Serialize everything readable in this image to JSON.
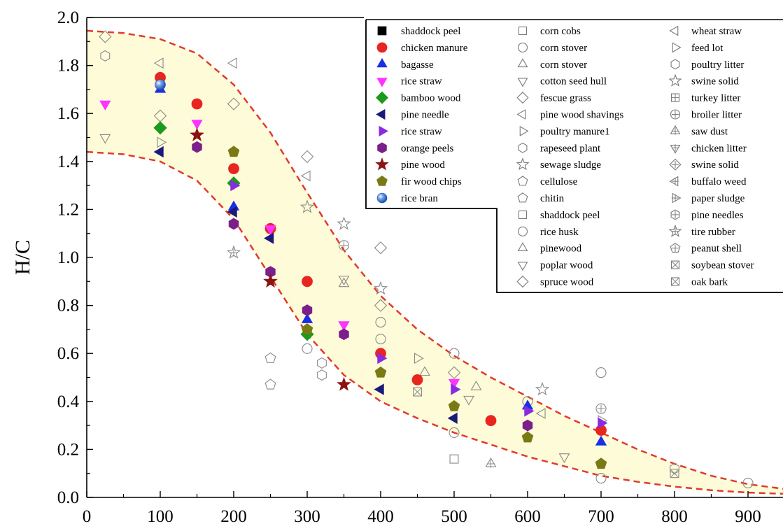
{
  "chart_data": {
    "type": "scatter",
    "xlim": [
      0,
      950
    ],
    "ylim": [
      0.0,
      2.0
    ],
    "ylabel": "H/C",
    "xlabel": "",
    "x_ticks": [
      "0",
      "100",
      "200",
      "300",
      "400",
      "500",
      "600",
      "700",
      "800",
      "900"
    ],
    "y_ticks": [
      "0.0",
      "0.2",
      "0.4",
      "0.6",
      "0.8",
      "1.0",
      "1.2",
      "1.4",
      "1.6",
      "1.8",
      "2.0"
    ],
    "grid": false,
    "legend_position": "top-right",
    "band": {
      "fill": "#fdfbd8",
      "line_color": "#e23a2a",
      "upper": [
        [
          0,
          1.945
        ],
        [
          50,
          1.935
        ],
        [
          100,
          1.91
        ],
        [
          150,
          1.85
        ],
        [
          200,
          1.72
        ],
        [
          250,
          1.52
        ],
        [
          300,
          1.27
        ],
        [
          350,
          1.03
        ],
        [
          400,
          0.84
        ],
        [
          450,
          0.7
        ],
        [
          500,
          0.59
        ],
        [
          550,
          0.5
        ],
        [
          600,
          0.42
        ],
        [
          650,
          0.34
        ],
        [
          700,
          0.27
        ],
        [
          750,
          0.2
        ],
        [
          800,
          0.14
        ],
        [
          850,
          0.09
        ],
        [
          900,
          0.055
        ],
        [
          950,
          0.035
        ]
      ],
      "lower": [
        [
          0,
          1.44
        ],
        [
          50,
          1.43
        ],
        [
          100,
          1.4
        ],
        [
          150,
          1.32
        ],
        [
          200,
          1.16
        ],
        [
          250,
          0.92
        ],
        [
          300,
          0.68
        ],
        [
          350,
          0.51
        ],
        [
          400,
          0.4
        ],
        [
          450,
          0.33
        ],
        [
          500,
          0.27
        ],
        [
          550,
          0.22
        ],
        [
          600,
          0.17
        ],
        [
          650,
          0.13
        ],
        [
          700,
          0.09
        ],
        [
          750,
          0.065
        ],
        [
          800,
          0.045
        ],
        [
          850,
          0.03
        ],
        [
          900,
          0.02
        ],
        [
          950,
          0.015
        ]
      ]
    },
    "legend_filled": [
      {
        "name": "shaddock peel",
        "marker": "square",
        "color": "#000000"
      },
      {
        "name": "chicken manure",
        "marker": "circle",
        "color": "#e8251f"
      },
      {
        "name": "bagasse",
        "marker": "triangle-up",
        "color": "#1a2ee6"
      },
      {
        "name": "rice straw",
        "marker": "triangle-down",
        "color": "#ff33ff"
      },
      {
        "name": "bamboo wood",
        "marker": "diamond",
        "color": "#1b9a1b"
      },
      {
        "name": "pine needle",
        "marker": "triangle-left",
        "color": "#1a1a7a"
      },
      {
        "name": "rice straw",
        "marker": "triangle-right",
        "color": "#8a2be2"
      },
      {
        "name": "orange peels",
        "marker": "hexagon",
        "color": "#7b1f8a"
      },
      {
        "name": "pine wood",
        "marker": "star",
        "color": "#8a1414"
      },
      {
        "name": "fir wood chips",
        "marker": "pentagon",
        "color": "#7a7a14"
      },
      {
        "name": "rice bran",
        "marker": "ball",
        "color": "#3b6fd1"
      }
    ],
    "legend_open": [
      {
        "name": "corn cobs",
        "marker": "square"
      },
      {
        "name": "corn stover",
        "marker": "circle"
      },
      {
        "name": "corn stover",
        "marker": "triangle-up"
      },
      {
        "name": "cotton seed hull",
        "marker": "triangle-down"
      },
      {
        "name": "fescue grass",
        "marker": "diamond"
      },
      {
        "name": "pine wood shavings",
        "marker": "triangle-left"
      },
      {
        "name": "poultry manure1",
        "marker": "triangle-right"
      },
      {
        "name": "rapeseed plant",
        "marker": "hexagon"
      },
      {
        "name": "sewage sludge",
        "marker": "star"
      },
      {
        "name": "cellulose",
        "marker": "pentagon"
      },
      {
        "name": "chitin",
        "marker": "pentagon"
      },
      {
        "name": "shaddock peel",
        "marker": "square"
      },
      {
        "name": "rice husk",
        "marker": "circle"
      },
      {
        "name": "pinewood",
        "marker": "triangle-up"
      },
      {
        "name": "poplar wood",
        "marker": "triangle-down"
      },
      {
        "name": "spruce wood",
        "marker": "diamond"
      },
      {
        "name": "wheat straw",
        "marker": "triangle-left"
      },
      {
        "name": "feed lot",
        "marker": "triangle-right"
      },
      {
        "name": "poultry litter",
        "marker": "hexagon"
      },
      {
        "name": "swine solid",
        "marker": "star"
      },
      {
        "name": "turkey litter",
        "marker": "square-plus"
      },
      {
        "name": "broiler litter",
        "marker": "circle-plus"
      },
      {
        "name": "saw dust",
        "marker": "triangle-up-plus"
      },
      {
        "name": "chicken litter",
        "marker": "triangle-down-plus"
      },
      {
        "name": "swine solid",
        "marker": "diamond-plus"
      },
      {
        "name": "buffalo weed",
        "marker": "triangle-left-plus"
      },
      {
        "name": "paper sludge",
        "marker": "triangle-right-plus"
      },
      {
        "name": "pine needles",
        "marker": "hexagon-plus"
      },
      {
        "name": "tire rubber",
        "marker": "star-plus"
      },
      {
        "name": "peanut shell",
        "marker": "pentagon-plus"
      },
      {
        "name": "soybean stover",
        "marker": "square-x"
      },
      {
        "name": "oak bark",
        "marker": "square-x"
      }
    ],
    "points_filled": [
      {
        "series": "chicken manure",
        "x": 100,
        "y": 1.75
      },
      {
        "series": "chicken manure",
        "x": 150,
        "y": 1.64
      },
      {
        "series": "chicken manure",
        "x": 200,
        "y": 1.37
      },
      {
        "series": "chicken manure",
        "x": 250,
        "y": 1.12
      },
      {
        "series": "chicken manure",
        "x": 300,
        "y": 0.9
      },
      {
        "series": "chicken manure",
        "x": 400,
        "y": 0.6
      },
      {
        "series": "chicken manure",
        "x": 450,
        "y": 0.49
      },
      {
        "series": "chicken manure",
        "x": 550,
        "y": 0.32
      },
      {
        "series": "chicken manure",
        "x": 700,
        "y": 0.28
      },
      {
        "series": "bagasse",
        "x": 100,
        "y": 1.7
      },
      {
        "series": "bagasse",
        "x": 200,
        "y": 1.21
      },
      {
        "series": "bagasse",
        "x": 300,
        "y": 0.74
      },
      {
        "series": "bagasse",
        "x": 600,
        "y": 0.38
      },
      {
        "series": "bagasse",
        "x": 700,
        "y": 0.23
      },
      {
        "series": "rice straw",
        "x": 25,
        "y": 1.64
      },
      {
        "series": "rice straw",
        "x": 150,
        "y": 1.56
      },
      {
        "series": "rice straw",
        "x": 250,
        "y": 1.12
      },
      {
        "series": "rice straw",
        "x": 350,
        "y": 0.72
      },
      {
        "series": "rice straw",
        "x": 500,
        "y": 0.48
      },
      {
        "series": "bamboo wood",
        "x": 100,
        "y": 1.54
      },
      {
        "series": "bamboo wood",
        "x": 200,
        "y": 1.31
      },
      {
        "series": "bamboo wood",
        "x": 300,
        "y": 0.68
      },
      {
        "series": "pine needle",
        "x": 100,
        "y": 1.44
      },
      {
        "series": "pine needle",
        "x": 200,
        "y": 1.19
      },
      {
        "series": "pine needle",
        "x": 250,
        "y": 1.08
      },
      {
        "series": "pine needle",
        "x": 400,
        "y": 0.45
      },
      {
        "series": "pine needle",
        "x": 500,
        "y": 0.33
      },
      {
        "series": "rice straw",
        "x": 200,
        "y": 1.3
      },
      {
        "series": "rice straw",
        "x": 400,
        "y": 0.58
      },
      {
        "series": "rice straw",
        "x": 500,
        "y": 0.45
      },
      {
        "series": "rice straw",
        "x": 600,
        "y": 0.36
      },
      {
        "series": "rice straw",
        "x": 700,
        "y": 0.31
      },
      {
        "series": "orange peels",
        "x": 150,
        "y": 1.46
      },
      {
        "series": "orange peels",
        "x": 200,
        "y": 1.14
      },
      {
        "series": "orange peels",
        "x": 250,
        "y": 0.94
      },
      {
        "series": "orange peels",
        "x": 300,
        "y": 0.78
      },
      {
        "series": "orange peels",
        "x": 350,
        "y": 0.68
      },
      {
        "series": "orange peels",
        "x": 600,
        "y": 0.3
      },
      {
        "series": "pine wood",
        "x": 150,
        "y": 1.51
      },
      {
        "series": "pine wood",
        "x": 250,
        "y": 0.9
      },
      {
        "series": "pine wood",
        "x": 350,
        "y": 0.47
      },
      {
        "series": "fir wood chips",
        "x": 200,
        "y": 1.44
      },
      {
        "series": "fir wood chips",
        "x": 300,
        "y": 0.7
      },
      {
        "series": "fir wood chips",
        "x": 400,
        "y": 0.52
      },
      {
        "series": "fir wood chips",
        "x": 500,
        "y": 0.38
      },
      {
        "series": "fir wood chips",
        "x": 600,
        "y": 0.25
      },
      {
        "series": "fir wood chips",
        "x": 700,
        "y": 0.14
      },
      {
        "series": "rice bran",
        "x": 100,
        "y": 1.72
      }
    ],
    "points_open": [
      {
        "series": "fescue grass",
        "x": 25,
        "y": 1.92
      },
      {
        "series": "fescue grass",
        "x": 100,
        "y": 1.59
      },
      {
        "series": "fescue grass",
        "x": 200,
        "y": 1.64
      },
      {
        "series": "fescue grass",
        "x": 300,
        "y": 1.42
      },
      {
        "series": "fescue grass",
        "x": 400,
        "y": 1.04
      },
      {
        "series": "fescue grass",
        "x": 400,
        "y": 0.8
      },
      {
        "series": "fescue grass",
        "x": 500,
        "y": 0.52
      },
      {
        "series": "hexagon",
        "x": 25,
        "y": 1.84
      },
      {
        "series": "wheat straw",
        "x": 100,
        "y": 1.81
      },
      {
        "series": "wheat straw",
        "x": 200,
        "y": 1.81
      },
      {
        "series": "wheat straw",
        "x": 300,
        "y": 1.34
      },
      {
        "series": "cotton seed hull",
        "x": 25,
        "y": 1.5
      },
      {
        "series": "poultry manure1",
        "x": 100,
        "y": 1.48
      },
      {
        "series": "sewage sludge",
        "x": 300,
        "y": 1.21
      },
      {
        "series": "sewage sludge",
        "x": 350,
        "y": 1.14
      },
      {
        "series": "sewage sludge",
        "x": 400,
        "y": 0.87
      },
      {
        "series": "broiler litter",
        "x": 350,
        "y": 1.05
      },
      {
        "series": "tire rubber",
        "x": 200,
        "y": 1.02
      },
      {
        "series": "cellulose",
        "x": 250,
        "y": 0.58
      },
      {
        "series": "chitin",
        "x": 250,
        "y": 0.47
      },
      {
        "series": "rice husk",
        "x": 300,
        "y": 0.62
      },
      {
        "series": "rapeseed plant",
        "x": 320,
        "y": 0.56
      },
      {
        "series": "rapeseed plant",
        "x": 320,
        "y": 0.51
      },
      {
        "series": "pinewood",
        "x": 350,
        "y": 0.89
      },
      {
        "series": "poplar wood",
        "x": 350,
        "y": 0.91
      },
      {
        "series": "corn stover",
        "x": 400,
        "y": 0.73
      },
      {
        "series": "corn stover",
        "x": 400,
        "y": 0.66
      },
      {
        "series": "corn stover",
        "x": 500,
        "y": 0.6
      },
      {
        "series": "corn stover",
        "x": 500,
        "y": 0.27
      },
      {
        "series": "corn stover",
        "x": 700,
        "y": 0.52
      },
      {
        "series": "corn stover",
        "x": 700,
        "y": 0.08
      },
      {
        "series": "soybean stover",
        "x": 450,
        "y": 0.44
      },
      {
        "series": "triangle-right",
        "x": 450,
        "y": 0.58
      },
      {
        "series": "pinewood",
        "x": 460,
        "y": 0.52
      },
      {
        "series": "pinewood",
        "x": 530,
        "y": 0.46
      },
      {
        "series": "cotton seed hull",
        "x": 520,
        "y": 0.41
      },
      {
        "series": "corn cobs",
        "x": 500,
        "y": 0.16
      },
      {
        "series": "saw dust",
        "x": 550,
        "y": 0.14
      },
      {
        "series": "cotton seed hull",
        "x": 650,
        "y": 0.17
      },
      {
        "series": "swine solid",
        "x": 620,
        "y": 0.45
      },
      {
        "series": "wheat straw",
        "x": 620,
        "y": 0.35
      },
      {
        "series": "corn stover",
        "x": 600,
        "y": 0.4
      },
      {
        "series": "broiler litter",
        "x": 700,
        "y": 0.37
      },
      {
        "series": "poultry manure1",
        "x": 700,
        "y": 0.32
      },
      {
        "series": "oak bark",
        "x": 800,
        "y": 0.1
      },
      {
        "series": "hexagon",
        "x": 800,
        "y": 0.12
      },
      {
        "series": "corn stover",
        "x": 900,
        "y": 0.06
      }
    ]
  }
}
